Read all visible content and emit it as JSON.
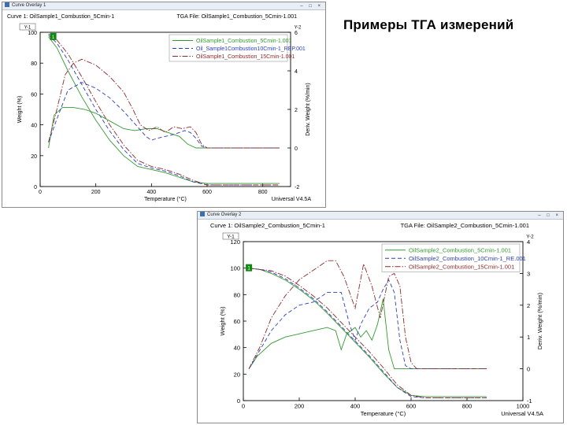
{
  "slide": {
    "title": "Примеры ТГА измерений"
  },
  "colors": {
    "green": "#339933",
    "blue": "#2b3fb8",
    "maroon": "#8b2a2a",
    "axis": "#000000",
    "label_bg": "#118811"
  },
  "windows": [
    {
      "title": "Curve Overlay 1",
      "controls": "– □ ×"
    },
    {
      "title": "Curve Overlay 2",
      "controls": "– □ ×"
    }
  ],
  "chart_data": [
    {
      "type": "line",
      "title": "Curve 1: OilSample1_Combustion_5Cmin-1",
      "tga_file": "TGA File: OilSample1_Combustion_5Cmin-1.001",
      "xlabel": "Temperature (°C)",
      "ylabel": "Weight (%)",
      "y2label": "Deriv. Weight (%/min)",
      "y1_tag": "Y-1",
      "y2_tag": "Y-2",
      "curve_marker": "1",
      "footer": "Universal V4.5A",
      "xlim": [
        0,
        900
      ],
      "ylim": [
        0,
        100
      ],
      "y2lim": [
        -2,
        6
      ],
      "xticks": [
        0,
        200,
        400,
        600,
        800
      ],
      "yticks": [
        0,
        20,
        40,
        60,
        80,
        100
      ],
      "y2ticks": [
        -2,
        0,
        2,
        4,
        6
      ],
      "xtick_labels": [
        "0",
        "200",
        "400",
        "600",
        "800"
      ],
      "ytick_labels": [
        "0",
        "20",
        "40",
        "60",
        "80",
        "100"
      ],
      "y2tick_labels": [
        "-2",
        "0",
        "2",
        "4",
        "6"
      ],
      "legend_position": "top-right",
      "series": [
        {
          "name": "OilSample1_Combustion_5Cmin-1.001",
          "color": "#339933",
          "dash": "solid",
          "axis": "y1",
          "x": [
            30,
            60,
            100,
            150,
            200,
            250,
            300,
            350,
            400,
            450,
            500,
            550,
            600,
            650,
            700,
            750,
            800,
            860
          ],
          "y": [
            97,
            90,
            75,
            58,
            43,
            30,
            20,
            13,
            11,
            9,
            6,
            3,
            2,
            2,
            2,
            2,
            2,
            2
          ]
        },
        {
          "name": "Oil_Sample1Combustion10Cmin-1_REP.001",
          "color": "#2b3fb8",
          "dash": "dashed",
          "axis": "y1",
          "x": [
            30,
            60,
            100,
            150,
            200,
            250,
            300,
            350,
            400,
            450,
            500,
            550,
            600,
            650,
            700,
            750,
            800,
            860
          ],
          "y": [
            98,
            93,
            82,
            66,
            50,
            36,
            24,
            15,
            12,
            10,
            7,
            3,
            1,
            1,
            1,
            1,
            1,
            1
          ]
        },
        {
          "name": "OilSample1_Combustion_15Cmin-1.001",
          "color": "#8b2a2a",
          "dash": "dashdot",
          "axis": "y1",
          "x": [
            30,
            60,
            100,
            150,
            200,
            250,
            300,
            350,
            400,
            450,
            500,
            550,
            600,
            650,
            700,
            750,
            800,
            860
          ],
          "y": [
            99,
            95,
            86,
            71,
            55,
            40,
            27,
            17,
            13,
            11,
            8,
            4,
            1,
            1,
            1,
            1,
            1,
            1
          ]
        },
        {
          "name": "",
          "color": "#339933",
          "dash": "solid",
          "axis": "y2",
          "x": [
            30,
            50,
            80,
            120,
            160,
            200,
            250,
            300,
            340,
            380,
            420,
            460,
            500,
            530,
            560,
            600,
            700,
            800,
            860
          ],
          "y": [
            0,
            1.7,
            2.1,
            2.1,
            2.0,
            1.8,
            1.4,
            1.0,
            0.9,
            1.0,
            1.0,
            0.8,
            0.6,
            0.2,
            0,
            0,
            0,
            0,
            0
          ]
        },
        {
          "name": "",
          "color": "#2b3fb8",
          "dash": "dashed",
          "axis": "y2",
          "x": [
            30,
            60,
            100,
            150,
            200,
            250,
            300,
            350,
            380,
            400,
            420,
            450,
            480,
            520,
            540,
            560,
            580,
            600,
            700,
            860
          ],
          "y": [
            0.3,
            1.5,
            3.0,
            3.4,
            3.1,
            2.6,
            1.9,
            1.1,
            0.6,
            0.4,
            0.5,
            0.6,
            0.7,
            0.9,
            0.8,
            0.5,
            0.1,
            0,
            0,
            0
          ]
        },
        {
          "name": "",
          "color": "#8b2a2a",
          "dash": "dashdot",
          "axis": "y2",
          "x": [
            30,
            60,
            90,
            120,
            150,
            200,
            250,
            300,
            330,
            360,
            390,
            420,
            450,
            480,
            510,
            540,
            560,
            580,
            600,
            700,
            860
          ],
          "y": [
            0.3,
            2.0,
            3.8,
            4.4,
            4.6,
            4.3,
            3.7,
            2.9,
            2.1,
            1.2,
            0.9,
            1.1,
            0.8,
            1.1,
            1.0,
            1.1,
            0.8,
            0.2,
            0,
            0,
            0
          ]
        }
      ]
    },
    {
      "type": "line",
      "title": "Curve 1: OilSample2_Combustion_5Cmin-1",
      "tga_file": "TGA File: OilSample2_Combustion_5Cmin-1.001",
      "xlabel": "Temperature (°C)",
      "ylabel": "Weight (%)",
      "y2label": "Deriv. Weight (%/min)",
      "y1_tag": "Y-1",
      "y2_tag": "Y-2",
      "curve_marker": "1",
      "footer": "Universal V4.5A",
      "xlim": [
        0,
        1000
      ],
      "ylim": [
        0,
        120
      ],
      "y2lim": [
        -1,
        4
      ],
      "xticks": [
        0,
        200,
        400,
        600,
        800,
        1000
      ],
      "yticks": [
        0,
        20,
        40,
        60,
        80,
        100,
        120
      ],
      "y2ticks": [
        -1,
        0,
        1,
        2,
        3,
        4
      ],
      "xtick_labels": [
        "0",
        "200",
        "400",
        "600",
        "800",
        "1000"
      ],
      "ytick_labels": [
        "0",
        "20",
        "40",
        "60",
        "80",
        "100",
        "120"
      ],
      "y2tick_labels": [
        "-1",
        "0",
        "1",
        "2",
        "3",
        "4"
      ],
      "legend_position": "top-right",
      "series": [
        {
          "name": "OilSample2_Combustion_5Cmin-1.001",
          "color": "#339933",
          "dash": "solid",
          "axis": "y1",
          "x": [
            20,
            60,
            100,
            150,
            200,
            250,
            300,
            350,
            400,
            450,
            500,
            550,
            600,
            650,
            700,
            800,
            870
          ],
          "y": [
            100,
            99,
            96,
            91,
            84,
            76,
            66,
            55,
            44,
            33,
            21,
            10,
            4,
            3,
            3,
            3,
            3
          ]
        },
        {
          "name": "OilSample2_Combustion_10Cmin-1_RE.001",
          "color": "#2b3fb8",
          "dash": "dashed",
          "axis": "y1",
          "x": [
            20,
            60,
            100,
            150,
            200,
            250,
            300,
            350,
            400,
            450,
            500,
            550,
            600,
            650,
            700,
            800,
            870
          ],
          "y": [
            100,
            99,
            97,
            92,
            85,
            77,
            67,
            56,
            45,
            34,
            22,
            10,
            3,
            2,
            2,
            2,
            2
          ]
        },
        {
          "name": "OilSample2_Combustion_15Cmin-1.001",
          "color": "#8b2a2a",
          "dash": "dashdot",
          "axis": "y1",
          "x": [
            20,
            60,
            100,
            150,
            200,
            250,
            300,
            350,
            400,
            450,
            500,
            550,
            600,
            650,
            700,
            800,
            870
          ],
          "y": [
            100,
            99,
            98,
            94,
            87,
            79,
            70,
            59,
            48,
            37,
            25,
            12,
            4,
            2,
            2,
            2,
            2
          ]
        },
        {
          "name": "",
          "color": "#339933",
          "dash": "solid",
          "axis": "y2",
          "x": [
            20,
            50,
            100,
            150,
            200,
            250,
            300,
            330,
            350,
            370,
            400,
            420,
            440,
            460,
            480,
            500,
            520,
            540,
            560,
            600,
            700,
            870
          ],
          "y": [
            0,
            0.4,
            0.8,
            1.0,
            1.1,
            1.2,
            1.3,
            1.2,
            0.6,
            1.1,
            1.3,
            1.0,
            1.2,
            0.9,
            1.4,
            2.2,
            0.6,
            0,
            0,
            0,
            0,
            0
          ]
        },
        {
          "name": "",
          "color": "#2b3fb8",
          "dash": "dashed",
          "axis": "y2",
          "x": [
            20,
            60,
            100,
            150,
            200,
            250,
            300,
            350,
            380,
            400,
            420,
            450,
            480,
            500,
            520,
            540,
            560,
            580,
            600,
            700,
            870
          ],
          "y": [
            0,
            0.6,
            1.2,
            1.7,
            2.0,
            2.1,
            2.4,
            2.4,
            1.4,
            0.9,
            1.4,
            1.9,
            2.1,
            2.5,
            2.8,
            2.4,
            0.9,
            0.1,
            0,
            0,
            0
          ]
        },
        {
          "name": "",
          "color": "#8b2a2a",
          "dash": "dashdot",
          "axis": "y2",
          "x": [
            20,
            60,
            100,
            150,
            200,
            250,
            300,
            330,
            360,
            400,
            430,
            460,
            490,
            520,
            540,
            560,
            580,
            600,
            620,
            700,
            870
          ],
          "y": [
            0,
            0.7,
            1.6,
            2.3,
            2.8,
            3.1,
            3.4,
            3.4,
            2.9,
            1.9,
            3.3,
            2.6,
            1.6,
            2.9,
            3.0,
            2.6,
            1.0,
            0.2,
            0,
            0,
            0
          ]
        }
      ]
    }
  ]
}
